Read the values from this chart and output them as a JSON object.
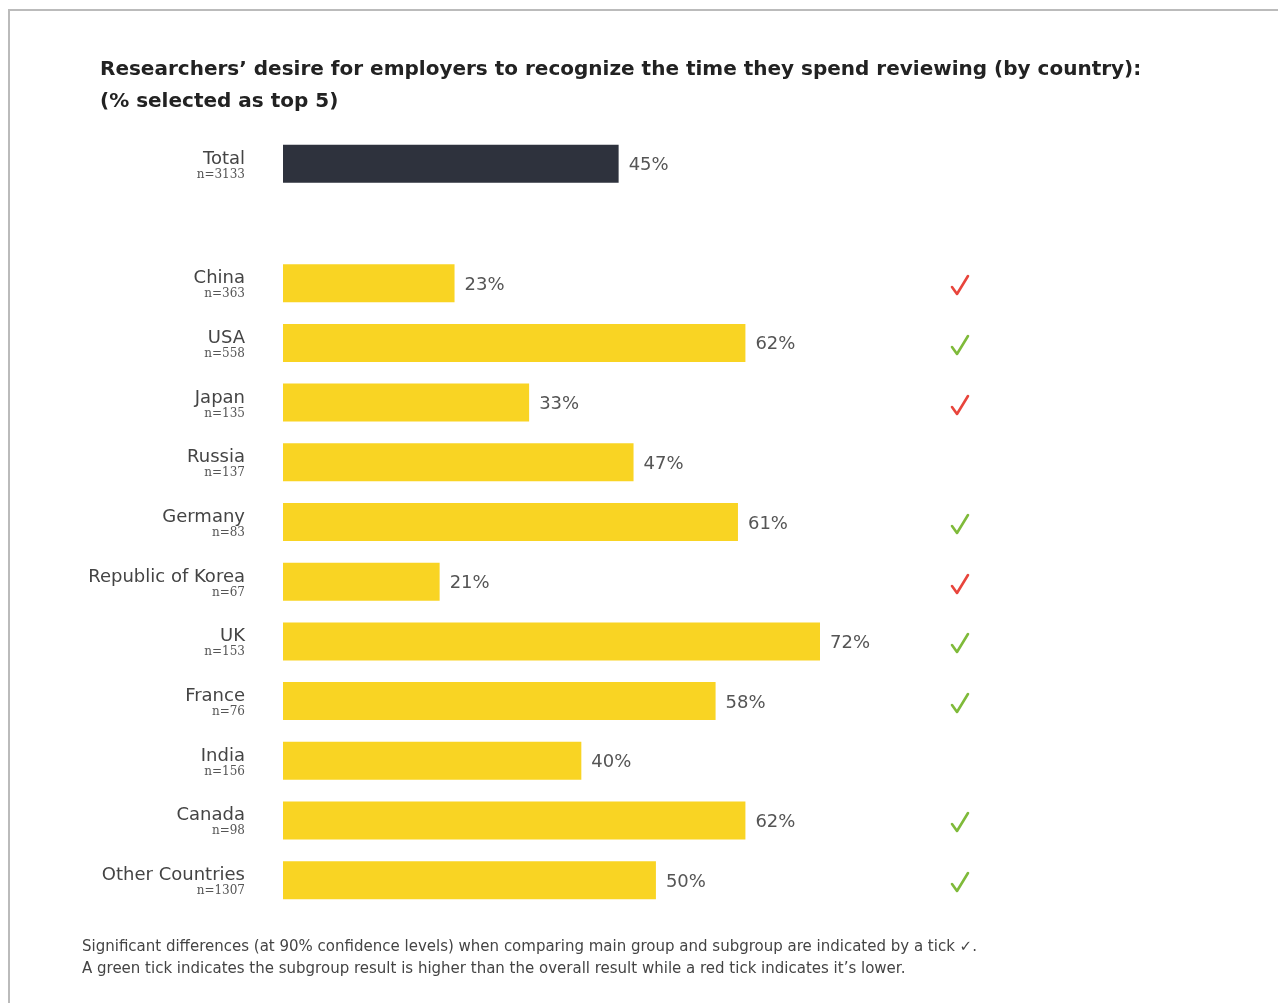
{
  "chart_data": {
    "type": "bar",
    "orientation": "horizontal",
    "title": "Researchers’ desire for employers to recognize the time they spend reviewing (by country):\n(% selected as top 5)",
    "categories": [
      "Total\nn=3133",
      null,
      "China\nn=363",
      "USA\nn=558",
      "Japan\nn=135",
      "Russia\nn=137",
      "Germany\nn=83",
      "Republic of Korea\nn=67",
      "UK\nn=153",
      "France\nn=76",
      "India\nn=156",
      "Canada\nn=98",
      "Other Countries\nn=1307"
    ],
    "values": [
      45,
      null,
      23,
      62,
      33,
      47,
      61,
      21,
      72,
      58,
      40,
      62,
      50
    ],
    "colors": [
      "#2e323d",
      null,
      "#f9d423",
      "#f9d423",
      "#f9d423",
      "#f9d423",
      "#f9d423",
      "#f9d423",
      "#f9d423",
      "#f9d423",
      "#f9d423",
      "#f9d423",
      "#f9d423"
    ],
    "value_labels": [
      "45%",
      null,
      "23%",
      "62%",
      "33%",
      "47%",
      "61%",
      "21%",
      "72%",
      "58%",
      "40%",
      "62%",
      "50%"
    ],
    "tick_labels": "y",
    "grid": false,
    "annotations": [
      "Significant differences (at 90% confidence levels) when comparing main group and subgroup are indicated by a tick ✓.\nA green tick indicates the subgroup result is higher than the overall result while a red tick indicates it’s lower."
    ]
  }
}
